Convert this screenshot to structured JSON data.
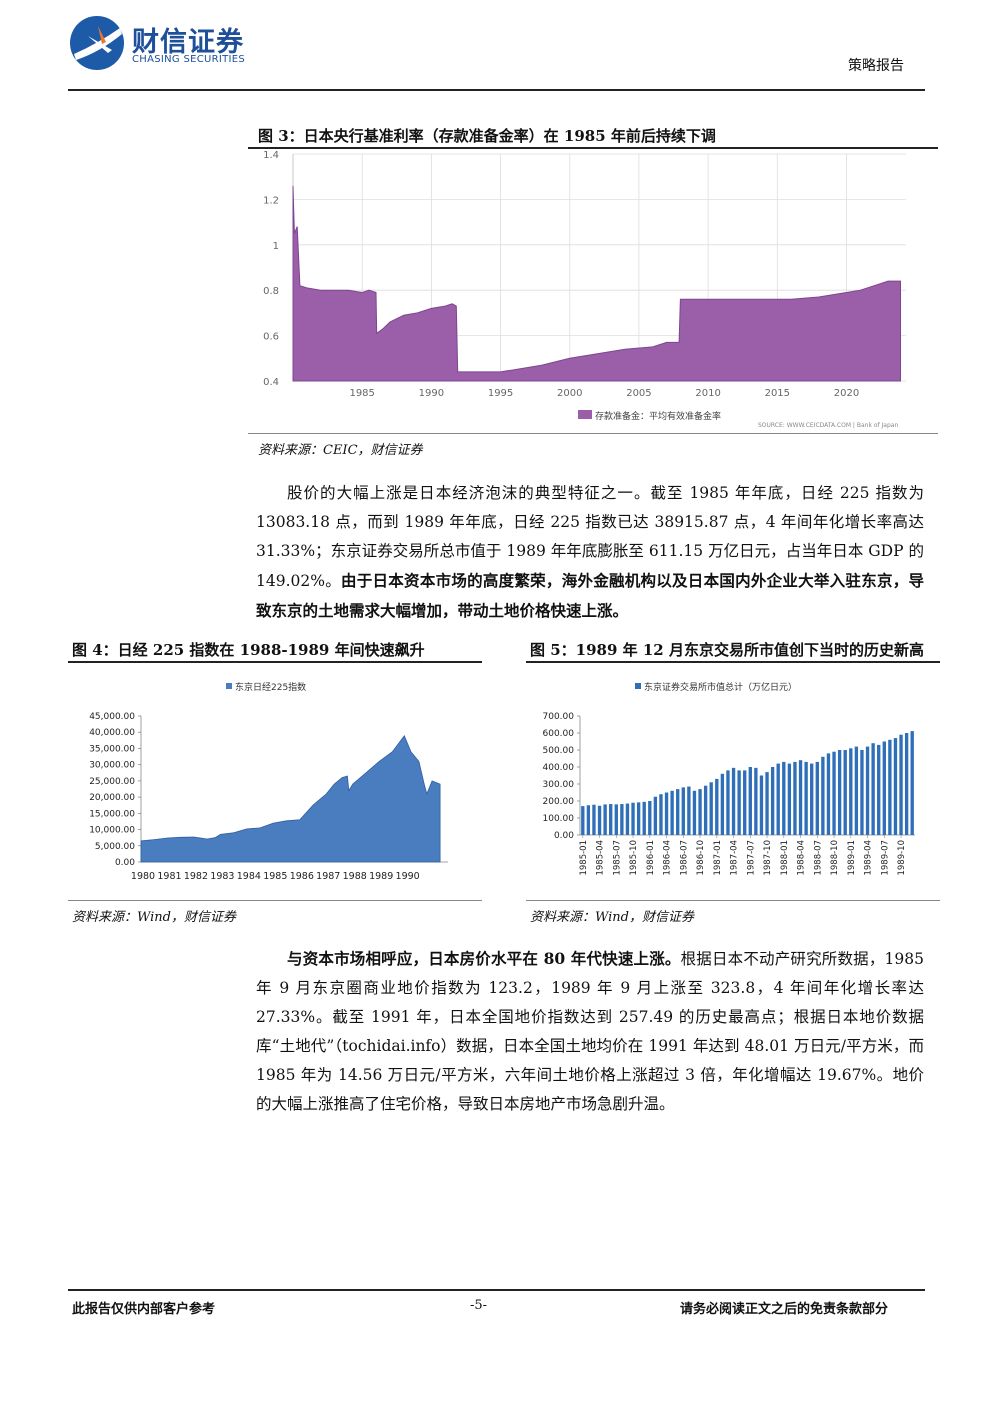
{
  "header": {
    "brand_cn": "财信证券",
    "brand_en": "CHASING SECURITIES",
    "report_type": "策略报告"
  },
  "fig3": {
    "title": "图 3：日本央行基准利率（存款准备金率）在 1985 年前后持续下调",
    "source": "资料来源：CEIC，财信证券",
    "watermark": "SOURCE: WWW.CEICDATA.COM | Bank of Japan",
    "chart_data": {
      "type": "area",
      "legend": "存款准备金：平均有效准备金率",
      "legend_position": "bottom-right",
      "color": "#9a5fa8",
      "ylim": [
        0.4,
        1.4
      ],
      "yticks": [
        "1.4",
        "1.2",
        "1",
        "0.8",
        "0.6",
        "0.4"
      ],
      "xticks": [
        "1985",
        "1990",
        "1995",
        "2000",
        "2005",
        "2010",
        "2015",
        "2020"
      ],
      "x": [
        1980.0,
        1980.1,
        1980.3,
        1980.5,
        1981,
        1982,
        1983,
        1984,
        1985,
        1985.5,
        1986,
        1986.05,
        1986.5,
        1987,
        1988,
        1989,
        1990,
        1991,
        1991.5,
        1991.8,
        1991.9,
        1993,
        1995,
        1996,
        1998,
        2000,
        2002,
        2004,
        2006,
        2007,
        2007.9,
        2008,
        2010,
        2012,
        2014,
        2016,
        2018,
        2020,
        2021,
        2022,
        2023,
        2023.9
      ],
      "y": [
        1.26,
        1.05,
        1.08,
        0.82,
        0.81,
        0.8,
        0.8,
        0.8,
        0.79,
        0.8,
        0.79,
        0.61,
        0.63,
        0.66,
        0.69,
        0.7,
        0.72,
        0.73,
        0.74,
        0.73,
        0.44,
        0.44,
        0.44,
        0.45,
        0.47,
        0.5,
        0.52,
        0.54,
        0.55,
        0.57,
        0.57,
        0.76,
        0.76,
        0.76,
        0.76,
        0.76,
        0.77,
        0.79,
        0.8,
        0.82,
        0.84,
        0.84
      ]
    }
  },
  "para1": {
    "text1": "股价的大幅上涨是日本经济泡沫的典型特征之一。截至 1985 年年底，日经 225 指数为 13083.18 点，而到 1989 年年底，日经 225 指数已达 38915.87 点，4 年间年化增长率高达 31.33%；东京证券交易所总市值于 1989 年年底膨胀至 611.15 万亿日元，占当年日本 GDP 的 149.02%。",
    "bold1": "由于日本资本市场的高度繁荣，海外金融机构以及日本国内外企业大举入驻东京，导致东京的土地需求大幅增加，带动土地价格快速上涨。"
  },
  "fig4": {
    "title": "图 4：日经 225 指数在 1988-1989 年间快速飙升",
    "source": "资料来源：Wind，财信证券",
    "chart_data": {
      "type": "area",
      "legend": "东京日经225指数",
      "legend_position": "top",
      "color": "#4a7cc0",
      "ylim": [
        0,
        45000
      ],
      "yticks": [
        "45,000.00",
        "40,000.00",
        "35,000.00",
        "30,000.00",
        "25,000.00",
        "20,000.00",
        "15,000.00",
        "10,000.00",
        "5,000.00",
        "0.00"
      ],
      "xticks": [
        "1980",
        "1981",
        "1982",
        "1983",
        "1984",
        "1985",
        "1986",
        "1987",
        "1988",
        "1989",
        "1990"
      ],
      "x": [
        1980,
        1980.5,
        1981,
        1981.5,
        1982,
        1982.5,
        1982.8,
        1983,
        1983.5,
        1984,
        1984.5,
        1985,
        1985.5,
        1986,
        1986.5,
        1987,
        1987.3,
        1987.6,
        1987.8,
        1987.85,
        1988,
        1988.5,
        1989,
        1989.5,
        1989.95,
        1990.2,
        1990.5,
        1990.7,
        1990.8,
        1991,
        1991.3
      ],
      "y": [
        6500,
        6900,
        7400,
        7600,
        7700,
        7100,
        7500,
        8500,
        9000,
        10200,
        10500,
        12000,
        12700,
        13000,
        17500,
        21000,
        24000,
        26000,
        26500,
        22000,
        24000,
        27500,
        31000,
        34000,
        38900,
        34000,
        31000,
        24000,
        21000,
        25000,
        24000
      ]
    }
  },
  "fig5": {
    "title": "图 5：1989 年 12 月东京交易所市值创下当时的历史新高",
    "source": "资料来源：Wind，财信证券",
    "chart_data": {
      "type": "bar",
      "legend": "东京证券交易所市值总计（万亿日元）",
      "legend_position": "top",
      "color": "#2e6fb8",
      "ylim": [
        0,
        700
      ],
      "yticks": [
        "700.00",
        "600.00",
        "500.00",
        "400.00",
        "300.00",
        "200.00",
        "100.00",
        "0.00"
      ],
      "xticks": [
        "1985-01",
        "1985-04",
        "1985-07",
        "1985-10",
        "1986-01",
        "1986-04",
        "1986-07",
        "1986-10",
        "1987-01",
        "1987-04",
        "1987-07",
        "1987-10",
        "1988-01",
        "1988-04",
        "1988-07",
        "1988-10",
        "1989-01",
        "1989-04",
        "1989-07",
        "1989-10"
      ],
      "values": [
        170,
        175,
        178,
        172,
        180,
        182,
        180,
        182,
        185,
        190,
        192,
        195,
        200,
        225,
        240,
        250,
        260,
        270,
        280,
        285,
        260,
        270,
        290,
        310,
        330,
        360,
        380,
        395,
        380,
        380,
        400,
        395,
        350,
        370,
        400,
        420,
        430,
        420,
        430,
        440,
        430,
        420,
        430,
        460,
        480,
        490,
        500,
        500,
        510,
        520,
        500,
        520,
        540,
        530,
        550,
        560,
        570,
        590,
        600,
        611
      ]
    }
  },
  "para2": {
    "bold1": "与资本市场相呼应，日本房价水平在 80 年代快速上涨。",
    "text1": "根据日本不动产研究所数据，1985 年 9 月东京圈商业地价指数为 123.2，1989 年 9 月上涨至 323.8，4 年间年化增长率达 27.33%。截至 1991 年，日本全国地价指数达到 257.49 的历史最高点；根据日本地价数据库“土地代”（tochidai.info）数据，日本全国土地均价在 1991 年达到 48.01 万日元/平方米，而 1985 年为 14.56 万日元/平方米，六年间土地价格上涨超过 3 倍，年化增幅达 19.67%。地价的大幅上涨推高了住宅价格，导致日本房地产市场急剧升温。"
  },
  "footer": {
    "left": "此报告仅供内部客户参考",
    "page": "-5-",
    "right": "请务必阅读正文之后的免责条款部分"
  }
}
